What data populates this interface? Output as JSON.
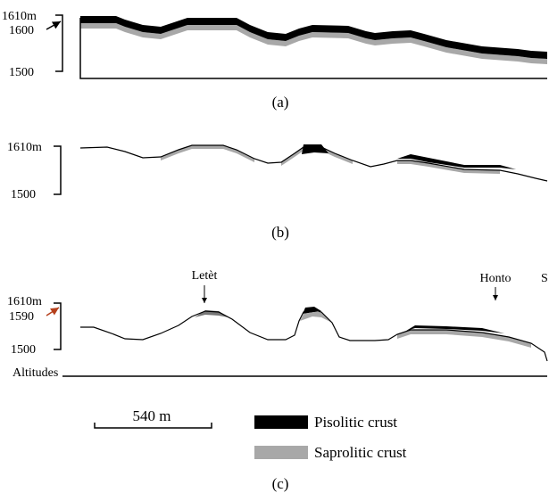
{
  "panels": [
    {
      "label": "(a)",
      "axis_labels": [
        "1610m",
        "1600",
        "1500"
      ]
    },
    {
      "label": "(b)",
      "axis_labels": [
        "1610m",
        "1500"
      ]
    },
    {
      "label": "(c)",
      "axis_labels": [
        "1610m",
        "1590",
        "1500"
      ],
      "axis_title": "Altitudes",
      "places": [
        "Letèt",
        "Honto",
        "S"
      ]
    }
  ],
  "scale_bar": "540 m",
  "legend": [
    "Pisolitic crust",
    "Saprolitic crust"
  ]
}
